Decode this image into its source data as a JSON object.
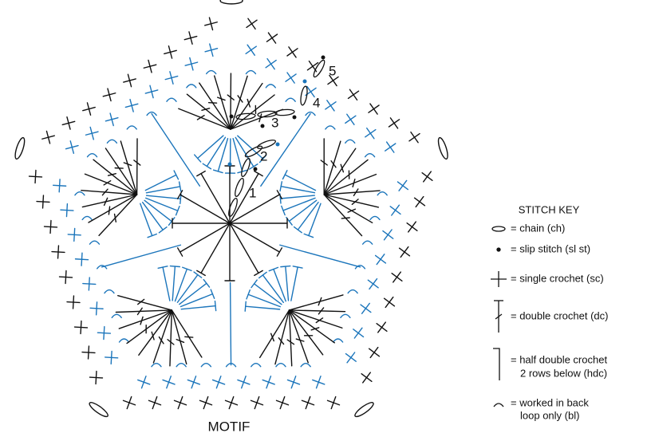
{
  "diagram": {
    "title": "MOTIF",
    "round_labels": [
      "1",
      "2",
      "3",
      "4",
      "5"
    ]
  },
  "key": {
    "title": "STITCH KEY",
    "items": [
      {
        "lines": [
          "= chain (ch)"
        ]
      },
      {
        "lines": [
          "= slip stitch (sl st)"
        ]
      },
      {
        "lines": [
          "= single crochet (sc)"
        ]
      },
      {
        "lines": [
          "= double crochet (dc)"
        ]
      },
      {
        "lines": [
          "= half double crochet",
          "2 rows below (hdc)"
        ]
      },
      {
        "lines": [
          "= worked in back",
          "loop only (bl)"
        ]
      }
    ]
  }
}
